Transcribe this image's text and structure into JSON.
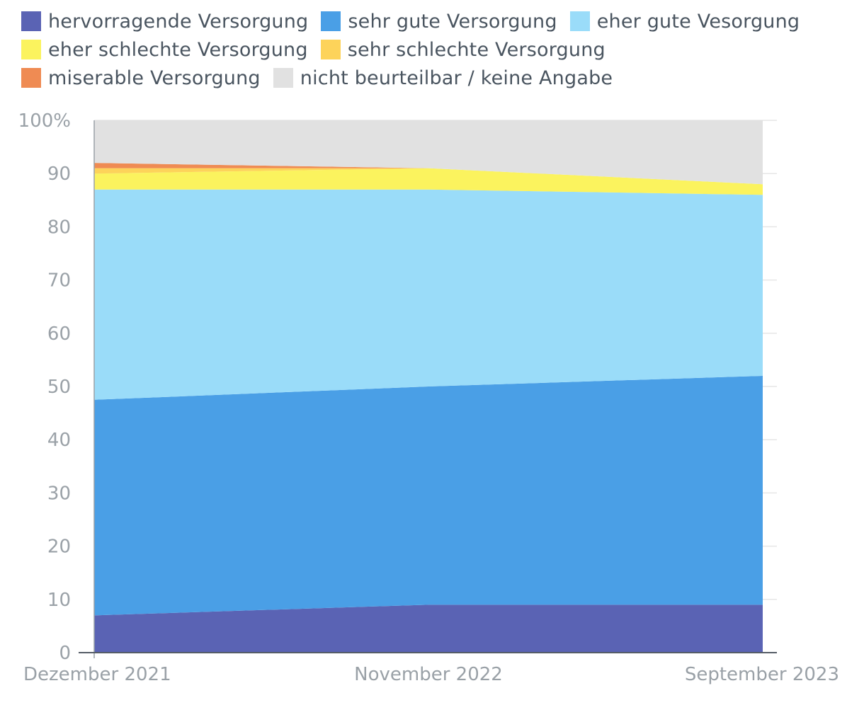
{
  "chart_data": {
    "type": "area",
    "stacked": true,
    "categories": [
      "Dezember 2021",
      "November 2022",
      "September 2023"
    ],
    "ylim": [
      0,
      100
    ],
    "yticks": [
      "0",
      "10",
      "20",
      "30",
      "40",
      "50",
      "60",
      "70",
      "80",
      "90",
      "100%"
    ],
    "grid": true,
    "legend_position": "top",
    "series": [
      {
        "name": "hervorragende Versorgung",
        "color": "#5a63b4",
        "values": [
          7,
          9,
          9
        ]
      },
      {
        "name": "sehr gute Versorgung",
        "color": "#4a9fe6",
        "values": [
          40.5,
          41,
          43
        ]
      },
      {
        "name": "eher gute Vesorgung",
        "color": "#9adcf9",
        "values": [
          39.5,
          37,
          34
        ]
      },
      {
        "name": "eher schlechte Versorgung",
        "color": "#fbf35e",
        "values": [
          3,
          4,
          2
        ]
      },
      {
        "name": "sehr schlechte Versorgung",
        "color": "#fdd35a",
        "values": [
          1,
          0,
          0
        ]
      },
      {
        "name": "miserable Versorgung",
        "color": "#ef8b53",
        "values": [
          1,
          0,
          0
        ]
      },
      {
        "name": "nicht beurteilbar / keine Angabe",
        "color": "#e1e1e1",
        "values": [
          8,
          9,
          12
        ]
      }
    ]
  }
}
